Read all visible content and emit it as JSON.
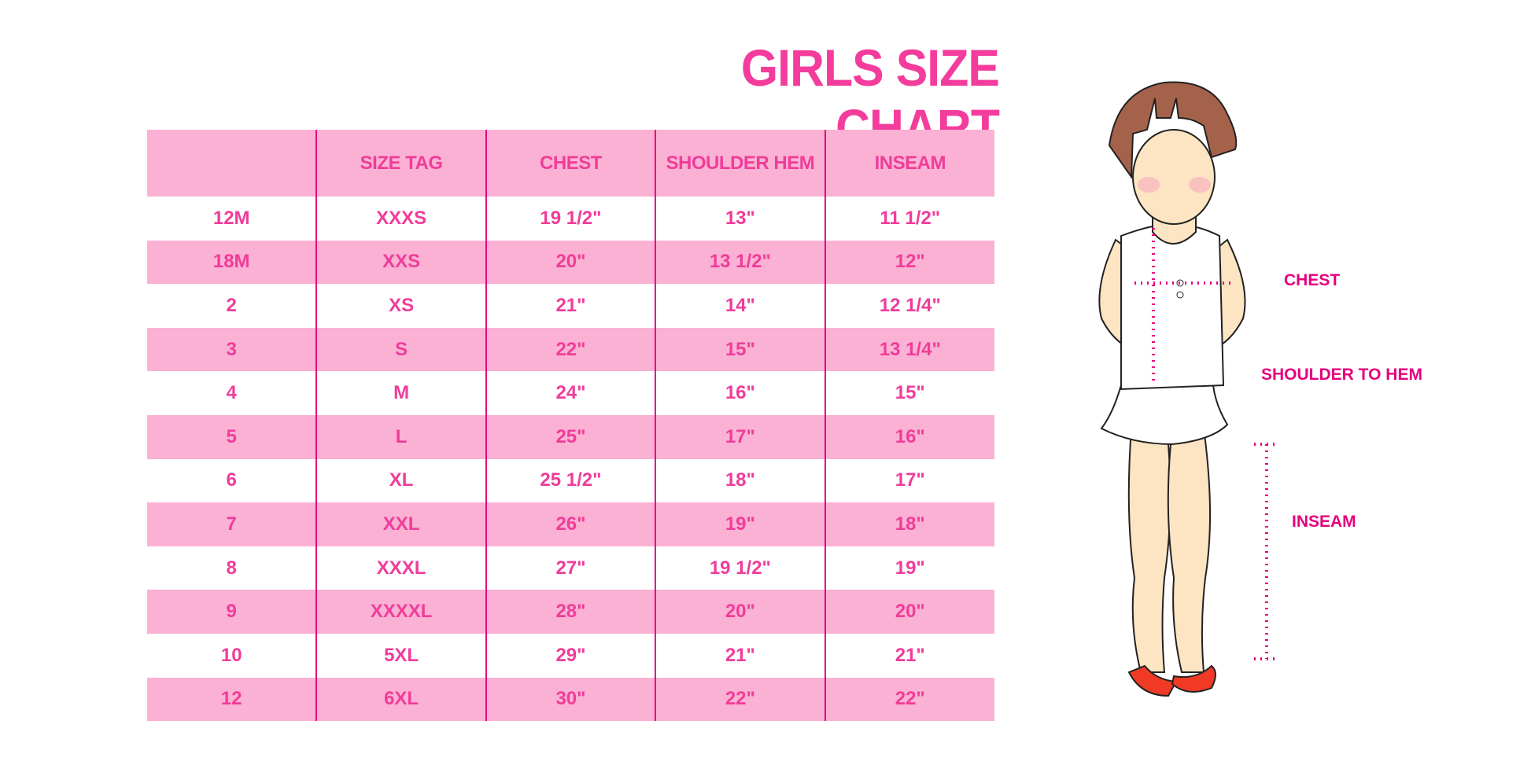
{
  "title": "GIRLS SIZE CHART",
  "table": {
    "headers": [
      "",
      "SIZE TAG",
      "CHEST",
      "SHOULDER HEM",
      "INSEAM"
    ],
    "rows": [
      [
        "12M",
        "XXXS",
        "19 1/2\"",
        "13\"",
        "11 1/2\""
      ],
      [
        "18M",
        "XXS",
        "20\"",
        "13 1/2\"",
        "12\""
      ],
      [
        "2",
        "XS",
        "21\"",
        "14\"",
        "12 1/4\""
      ],
      [
        "3",
        "S",
        "22\"",
        "15\"",
        "13 1/4\""
      ],
      [
        "4",
        "M",
        "24\"",
        "16\"",
        "15\""
      ],
      [
        "5",
        "L",
        "25\"",
        "17\"",
        "16\""
      ],
      [
        "6",
        "XL",
        "25 1/2\"",
        "18\"",
        "17\""
      ],
      [
        "7",
        "XXL",
        "26\"",
        "19\"",
        "18\""
      ],
      [
        "8",
        "XXXL",
        "27\"",
        "19 1/2\"",
        "19\""
      ],
      [
        "9",
        "XXXXL",
        "28\"",
        "20\"",
        "20\""
      ],
      [
        "10",
        "5XL",
        "29\"",
        "21\"",
        "21\""
      ],
      [
        "12",
        "6XL",
        "30\"",
        "22\"",
        "22\""
      ]
    ]
  },
  "figure": {
    "labels": {
      "chest": "CHEST",
      "shoulder": "SHOULDER TO HEM",
      "inseam": "INSEAM"
    }
  },
  "colors": {
    "accent": "#f03c9a",
    "row_fill": "#fbb1d3",
    "divider": "#e6007e"
  }
}
